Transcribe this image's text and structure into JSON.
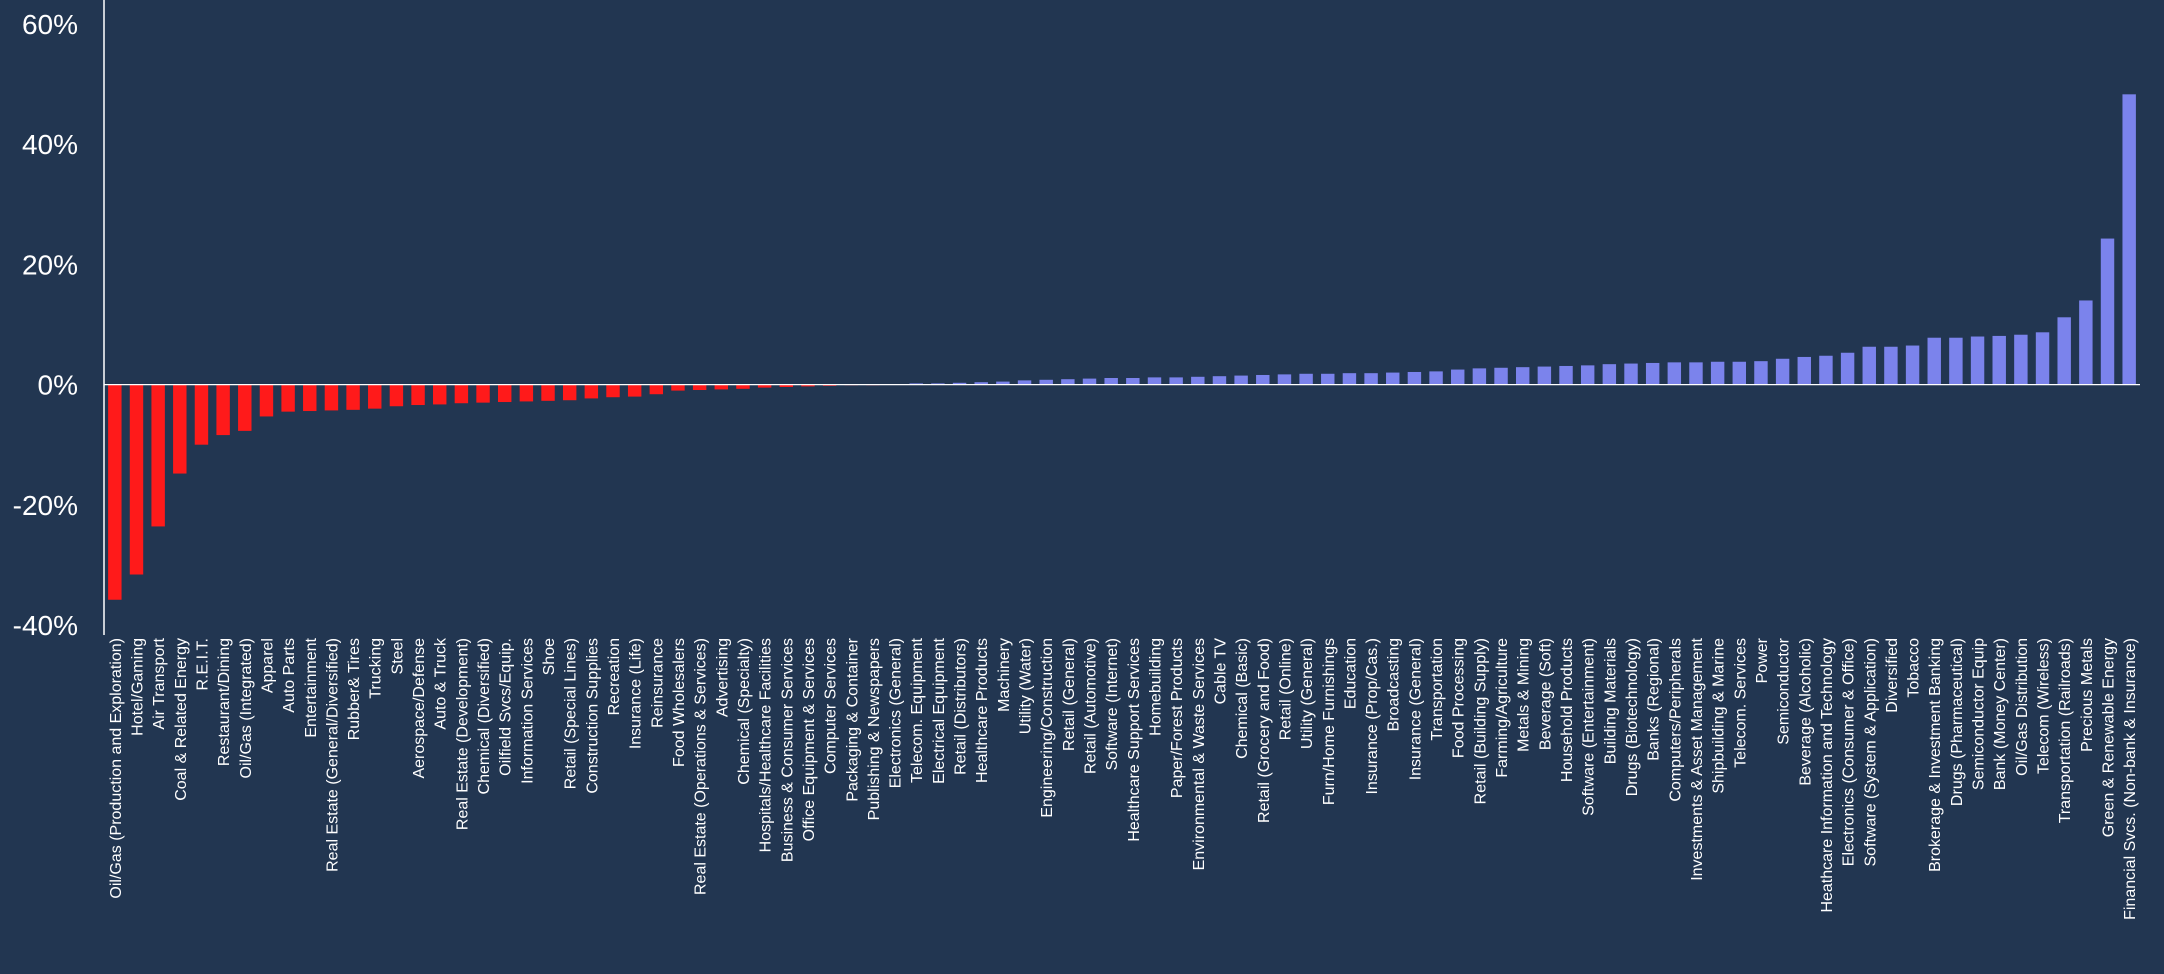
{
  "chart_data": {
    "type": "bar",
    "title": "",
    "xlabel": "",
    "ylabel": "",
    "ylim": [
      -40,
      60
    ],
    "yticks": [
      60,
      40,
      20,
      0,
      -20,
      -40
    ],
    "ytick_labels": [
      "60%",
      "40%",
      "20%",
      "0%",
      "-20%",
      "-40%"
    ],
    "grid": false,
    "legend": "none",
    "colors": {
      "background": "#223651",
      "negative": "#ff1a1a",
      "positive": "#7b83ec",
      "axis": "#ffffff",
      "text": "#ffffff"
    },
    "categories": [
      "Oil/Gas (Production and Exploration)",
      "Hotel/Gaming",
      "Air Transport",
      "Coal & Related Energy",
      "R.E.I.T.",
      "Restaurant/Dining",
      "Oil/Gas (Integrated)",
      "Apparel",
      "Auto Parts",
      "Entertainment",
      "Real Estate (General/Diversified)",
      "Rubber& Tires",
      "Trucking",
      "Steel",
      "Aerospace/Defense",
      "Auto & Truck",
      "Real Estate (Development)",
      "Chemical (Diversified)",
      "Oilfield Svcs/Equip.",
      "Information Services",
      "Shoe",
      "Retail (Special Lines)",
      "Construction Supplies",
      "Recreation",
      "Insurance (Life)",
      "Reinsurance",
      "Food Wholesalers",
      "Real Estate (Operations & Services)",
      "Advertising",
      "Chemical (Specialty)",
      "Hospitals/Healthcare Facilities",
      "Business & Consumer Services",
      "Office Equipment & Services",
      "Computer Services",
      "Packaging & Container",
      "Publishing & Newspapers",
      "Electronics (General)",
      "Telecom. Equipment",
      "Electrical Equipment",
      "Retail (Distributors)",
      "Healthcare Products",
      "Machinery",
      "Utility (Water)",
      "Engineering/Construction",
      "Retail (General)",
      "Retail (Automotive)",
      "Software (Internet)",
      "Healthcare Support Services",
      "Homebuilding",
      "Paper/Forest Products",
      "Environmental & Waste Services",
      "Cable TV",
      "Chemical (Basic)",
      "Retail (Grocery and Food)",
      "Retail (Online)",
      "Utility (General)",
      "Furn/Home Furnishings",
      "Education",
      "Insurance (Prop/Cas.)",
      "Broadcasting",
      "Insurance (General)",
      "Transportation",
      "Food Processing",
      "Retail (Building Supply)",
      "Farming/Agriculture",
      "Metals & Mining",
      "Beverage (Soft)",
      "Household Products",
      "Software (Entertainment)",
      "Building Materials",
      "Drugs (Biotechnology)",
      "Banks (Regional)",
      "Computers/Peripherals",
      "Investments & Asset Management",
      "Shipbuilding & Marine",
      "Telecom. Services",
      "Power",
      "Semiconductor",
      "Beverage (Alcoholic)",
      "Heathcare Information and Technology",
      "Electronics (Consumer & Office)",
      "Software (System & Application)",
      "Diversified",
      "Tobacco",
      "Brokerage & Investment Banking",
      "Drugs (Pharmaceutical)",
      "Semiconductor Equip",
      "Bank (Money Center)",
      "Oil/Gas Distribution",
      "Telecom (Wireless)",
      "Transportation (Railroads)",
      "Precious Metals",
      "Green & Renewable Energy",
      "Financial Svcs. (Non-bank & Insurance)"
    ],
    "values": [
      -35.8,
      -31.6,
      -23.6,
      -14.8,
      -10.0,
      -8.4,
      -7.7,
      -5.3,
      -4.5,
      -4.4,
      -4.3,
      -4.2,
      -4.0,
      -3.6,
      -3.4,
      -3.3,
      -3.1,
      -3.0,
      -2.9,
      -2.8,
      -2.7,
      -2.6,
      -2.3,
      -2.1,
      -2.0,
      -1.6,
      -1.0,
      -0.9,
      -0.8,
      -0.7,
      -0.5,
      -0.4,
      -0.3,
      -0.2,
      -0.1,
      -0.05,
      0.1,
      0.2,
      0.2,
      0.3,
      0.4,
      0.5,
      0.7,
      0.8,
      0.9,
      1.0,
      1.1,
      1.1,
      1.2,
      1.2,
      1.3,
      1.4,
      1.5,
      1.6,
      1.7,
      1.8,
      1.8,
      1.9,
      1.9,
      2.0,
      2.1,
      2.2,
      2.5,
      2.7,
      2.8,
      2.9,
      3.0,
      3.1,
      3.2,
      3.4,
      3.5,
      3.6,
      3.7,
      3.7,
      3.8,
      3.8,
      3.9,
      4.3,
      4.6,
      4.8,
      5.3,
      6.3,
      6.3,
      6.5,
      7.8,
      7.8,
      8.0,
      8.1,
      8.3,
      8.7,
      11.2,
      14.0,
      24.3,
      48.3
    ]
  }
}
